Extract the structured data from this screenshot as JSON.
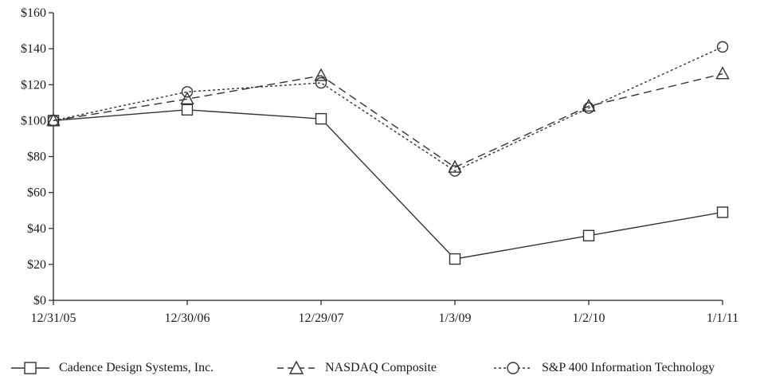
{
  "chart_data": {
    "type": "line",
    "title": "",
    "xlabel": "",
    "ylabel": "",
    "categories": [
      "12/31/05",
      "12/30/06",
      "12/29/07",
      "1/3/09",
      "1/2/10",
      "1/1/11"
    ],
    "yticks": [
      "$0",
      "$20",
      "$40",
      "$60",
      "$80",
      "$100",
      "$120",
      "$140",
      "$160"
    ],
    "ylim": [
      0,
      160
    ],
    "grid": false,
    "legend_position": "bottom",
    "series": [
      {
        "name": "Cadence Design Systems, Inc.",
        "marker": "square",
        "dash": "solid",
        "values": [
          100,
          106,
          101,
          23,
          36,
          49
        ]
      },
      {
        "name": "NASDAQ Composite",
        "marker": "triangle",
        "dash": "dashed",
        "values": [
          100,
          112,
          125,
          74,
          108,
          126
        ]
      },
      {
        "name": "S&P 400 Information Technology",
        "marker": "circle",
        "dash": "dotted",
        "values": [
          100,
          116,
          121,
          72,
          107,
          141
        ]
      }
    ]
  }
}
